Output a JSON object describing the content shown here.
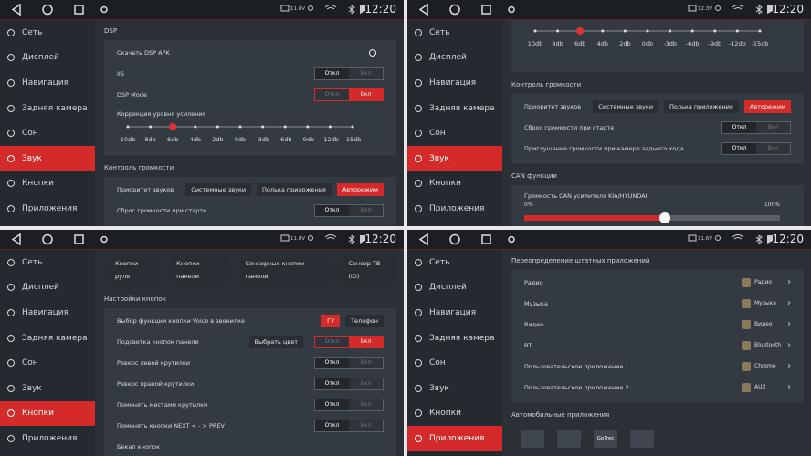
{
  "menu": [
    "Сеть",
    "Дисплей",
    "Навигация",
    "Задняя камера",
    "Сон",
    "Звук",
    "Кнопки",
    "Приложения"
  ],
  "toggle_labels": [
    "Откл",
    "Вкл"
  ],
  "panels": [
    {
      "voltage": "11.8V",
      "time": "12:20",
      "active": 5,
      "blocks": [
        {
          "kind": "header",
          "text": "DSP"
        },
        {
          "kind": "card",
          "rows": [
            {
              "kind": "link",
              "label": "Скачать DSP APK"
            },
            {
              "kind": "toggle",
              "label": "IIS",
              "on": false
            },
            {
              "kind": "toggle",
              "label": "DSP Mode",
              "on": true
            },
            {
              "kind": "slider",
              "label": "Коррекция уровня усиления",
              "ticks": [
                "10db",
                "8db",
                "6db",
                "4db",
                "2db",
                "0db",
                "-3db",
                "-6db",
                "-9db",
                "-12db",
                "-15db"
              ],
              "selected": 2
            }
          ]
        },
        {
          "kind": "header",
          "text": "Контроль громкости"
        },
        {
          "kind": "card",
          "rows": [
            {
              "kind": "choice",
              "label": "Приоритет звуков",
              "options": [
                "Системные звуки",
                "Полька приложения",
                "Авторежим"
              ],
              "selected": 2
            },
            {
              "kind": "toggle",
              "label": "Сброс громкости при старте",
              "on": false
            }
          ]
        }
      ]
    },
    {
      "voltage": "12.3V",
      "time": "12:20",
      "active": 5,
      "blocks": [
        {
          "kind": "card",
          "rows": [
            {
              "kind": "slider",
              "ticks": [
                "10db",
                "8db",
                "6db",
                "4db",
                "2db",
                "0db",
                "-3db",
                "-6db",
                "-9db",
                "-12db",
                "-15db"
              ],
              "selected": 2
            }
          ]
        },
        {
          "kind": "header",
          "text": "Контроль громкости"
        },
        {
          "kind": "card",
          "rows": [
            {
              "kind": "choice",
              "label": "Приоритет звуков",
              "options": [
                "Системные звуки",
                "Полька приложения",
                "Авторежим"
              ],
              "selected": 2
            },
            {
              "kind": "toggle",
              "label": "Сброс громкости при старте",
              "on": false
            },
            {
              "kind": "toggle",
              "label": "Приглушение громкости при камере заднего хода",
              "on": false
            }
          ]
        },
        {
          "kind": "header",
          "text": "CAN функции"
        },
        {
          "kind": "card",
          "rows": [
            {
              "kind": "range",
              "label": "Громкость CAN усилителя KIA/HYUNDAI",
              "min": {
                "value": 0,
                "label": "0%"
              },
              "max": {
                "value": 100,
                "label": "100%"
              },
              "value": 55
            }
          ]
        }
      ]
    },
    {
      "voltage": "11.8V",
      "time": "12:20",
      "active": 6,
      "blocks": [
        {
          "kind": "tabs",
          "options": [
            "Кнопки руля",
            "Кнопки панели",
            "Сенсорные кнопки панели",
            "Сенсор ТВ (IO)"
          ]
        },
        {
          "kind": "header",
          "text": "Настройки кнопок"
        },
        {
          "kind": "card",
          "rows": [
            {
              "kind": "choice",
              "label": "Выбор функции кнопки Voice в звонилке",
              "options": [
                "ГУ",
                "Телефон"
              ],
              "selected": 0
            },
            {
              "kind": "button_toggle",
              "label": "Подсветка кнопок панели",
              "button": "Выбрать цвет",
              "on": true
            },
            {
              "kind": "toggle",
              "label": "Реверс левой крутилки",
              "on": false
            },
            {
              "kind": "toggle",
              "label": "Реверс правой крутилки",
              "on": false
            },
            {
              "kind": "toggle",
              "label": "Поменять местами крутилки",
              "on": false
            },
            {
              "kind": "toggle",
              "label": "Поменять кнопки NEXT < - > PREV",
              "on": false
            },
            {
              "kind": "link",
              "label": "Бекап кнопок"
            }
          ]
        }
      ]
    },
    {
      "voltage": "11.6V",
      "time": "12:20",
      "active": 7,
      "blocks": [
        {
          "kind": "header",
          "text": "Переопределение штатных приложений"
        },
        {
          "kind": "card",
          "rows": [
            {
              "kind": "app",
              "label": "Радио",
              "app": "Радио"
            },
            {
              "kind": "app",
              "label": "Музыка",
              "app": "Музыка"
            },
            {
              "kind": "app",
              "label": "Видео",
              "app": "Видео"
            },
            {
              "kind": "app",
              "label": "BT",
              "app": "Bluetooth"
            },
            {
              "kind": "app",
              "label": "Пользовательское приложение 1",
              "app": "Chrome"
            },
            {
              "kind": "app",
              "label": "Пользовательское приложение 2",
              "app": "AUX"
            }
          ]
        },
        {
          "kind": "header",
          "text": "Автомобильные приложения"
        },
        {
          "kind": "apps",
          "labels": [
            "GoTrec"
          ]
        }
      ]
    }
  ]
}
